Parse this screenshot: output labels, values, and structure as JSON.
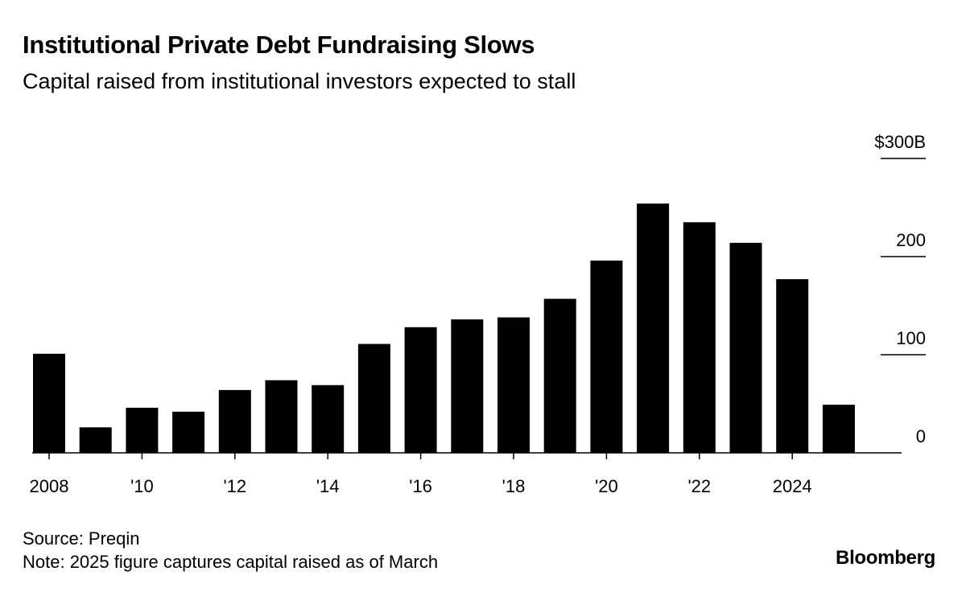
{
  "title": "Institutional Private Debt Fundraising Slows",
  "subtitle": "Capital raised from institutional investors expected to stall",
  "source": "Source: Preqin",
  "note": "Note: 2025 figure captures capital raised as of March",
  "brand": "Bloomberg",
  "chart_data": {
    "type": "bar",
    "categories": [
      "2008",
      "2009",
      "2010",
      "2011",
      "2012",
      "2013",
      "2014",
      "2015",
      "2016",
      "2017",
      "2018",
      "2019",
      "2020",
      "2021",
      "2022",
      "2023",
      "2024",
      "2025"
    ],
    "values": [
      101,
      26,
      46,
      42,
      64,
      74,
      69,
      111,
      128,
      136,
      138,
      157,
      196,
      254,
      235,
      214,
      177,
      49
    ],
    "x_tick_labels": [
      {
        "category": "2008",
        "label": "2008"
      },
      {
        "category": "2010",
        "label": "'10"
      },
      {
        "category": "2012",
        "label": "'12"
      },
      {
        "category": "2014",
        "label": "'14"
      },
      {
        "category": "2016",
        "label": "'16"
      },
      {
        "category": "2018",
        "label": "'18"
      },
      {
        "category": "2020",
        "label": "'20"
      },
      {
        "category": "2022",
        "label": "'22"
      },
      {
        "category": "2024",
        "label": "2024"
      }
    ],
    "y_ticks": [
      {
        "value": 0,
        "label": "0"
      },
      {
        "value": 100,
        "label": "100"
      },
      {
        "value": 200,
        "label": "200"
      },
      {
        "value": 300,
        "label": "$300B"
      }
    ],
    "ylim": [
      0,
      300
    ],
    "y_axis_side": "right",
    "bar_color": "#000000",
    "grid": false,
    "legend": "none"
  }
}
